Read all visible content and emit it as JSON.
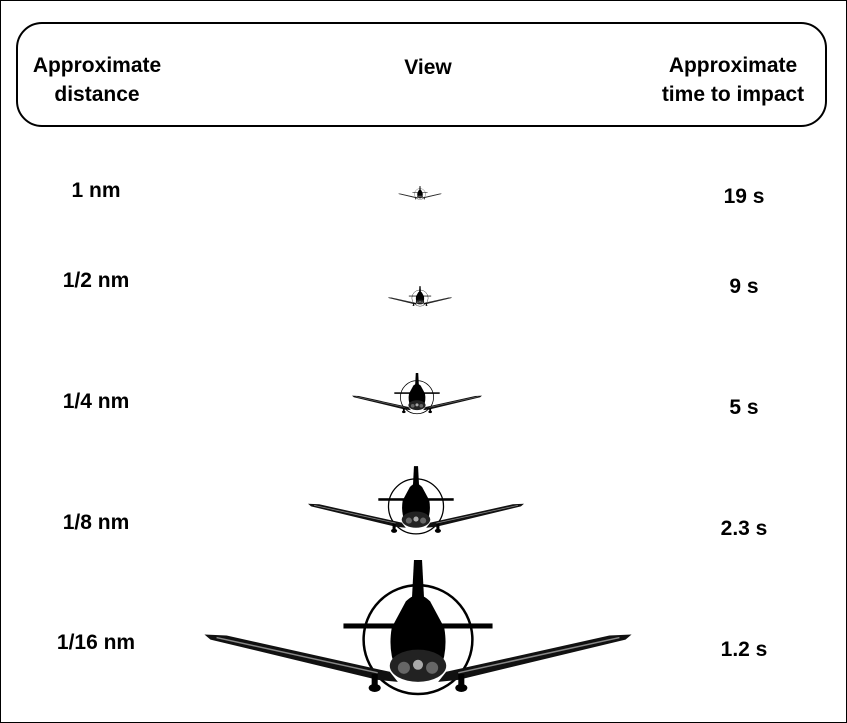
{
  "header": {
    "distance_label": "Approximate\ndistance",
    "view_label": "View",
    "time_label": "Approximate\ntime to impact"
  },
  "rows": [
    {
      "distance": "1 nm",
      "view": "aircraft-front-view-icon",
      "time": "19 s"
    },
    {
      "distance": "1/2 nm",
      "view": "aircraft-front-view-icon",
      "time": "9 s"
    },
    {
      "distance": "1/4 nm",
      "view": "aircraft-front-view-icon",
      "time": "5 s"
    },
    {
      "distance": "1/8 nm",
      "view": "aircraft-front-view-icon",
      "time": "2.3 s"
    },
    {
      "distance": "1/16 nm",
      "view": "aircraft-front-view-icon",
      "time": "1.2 s"
    }
  ]
}
